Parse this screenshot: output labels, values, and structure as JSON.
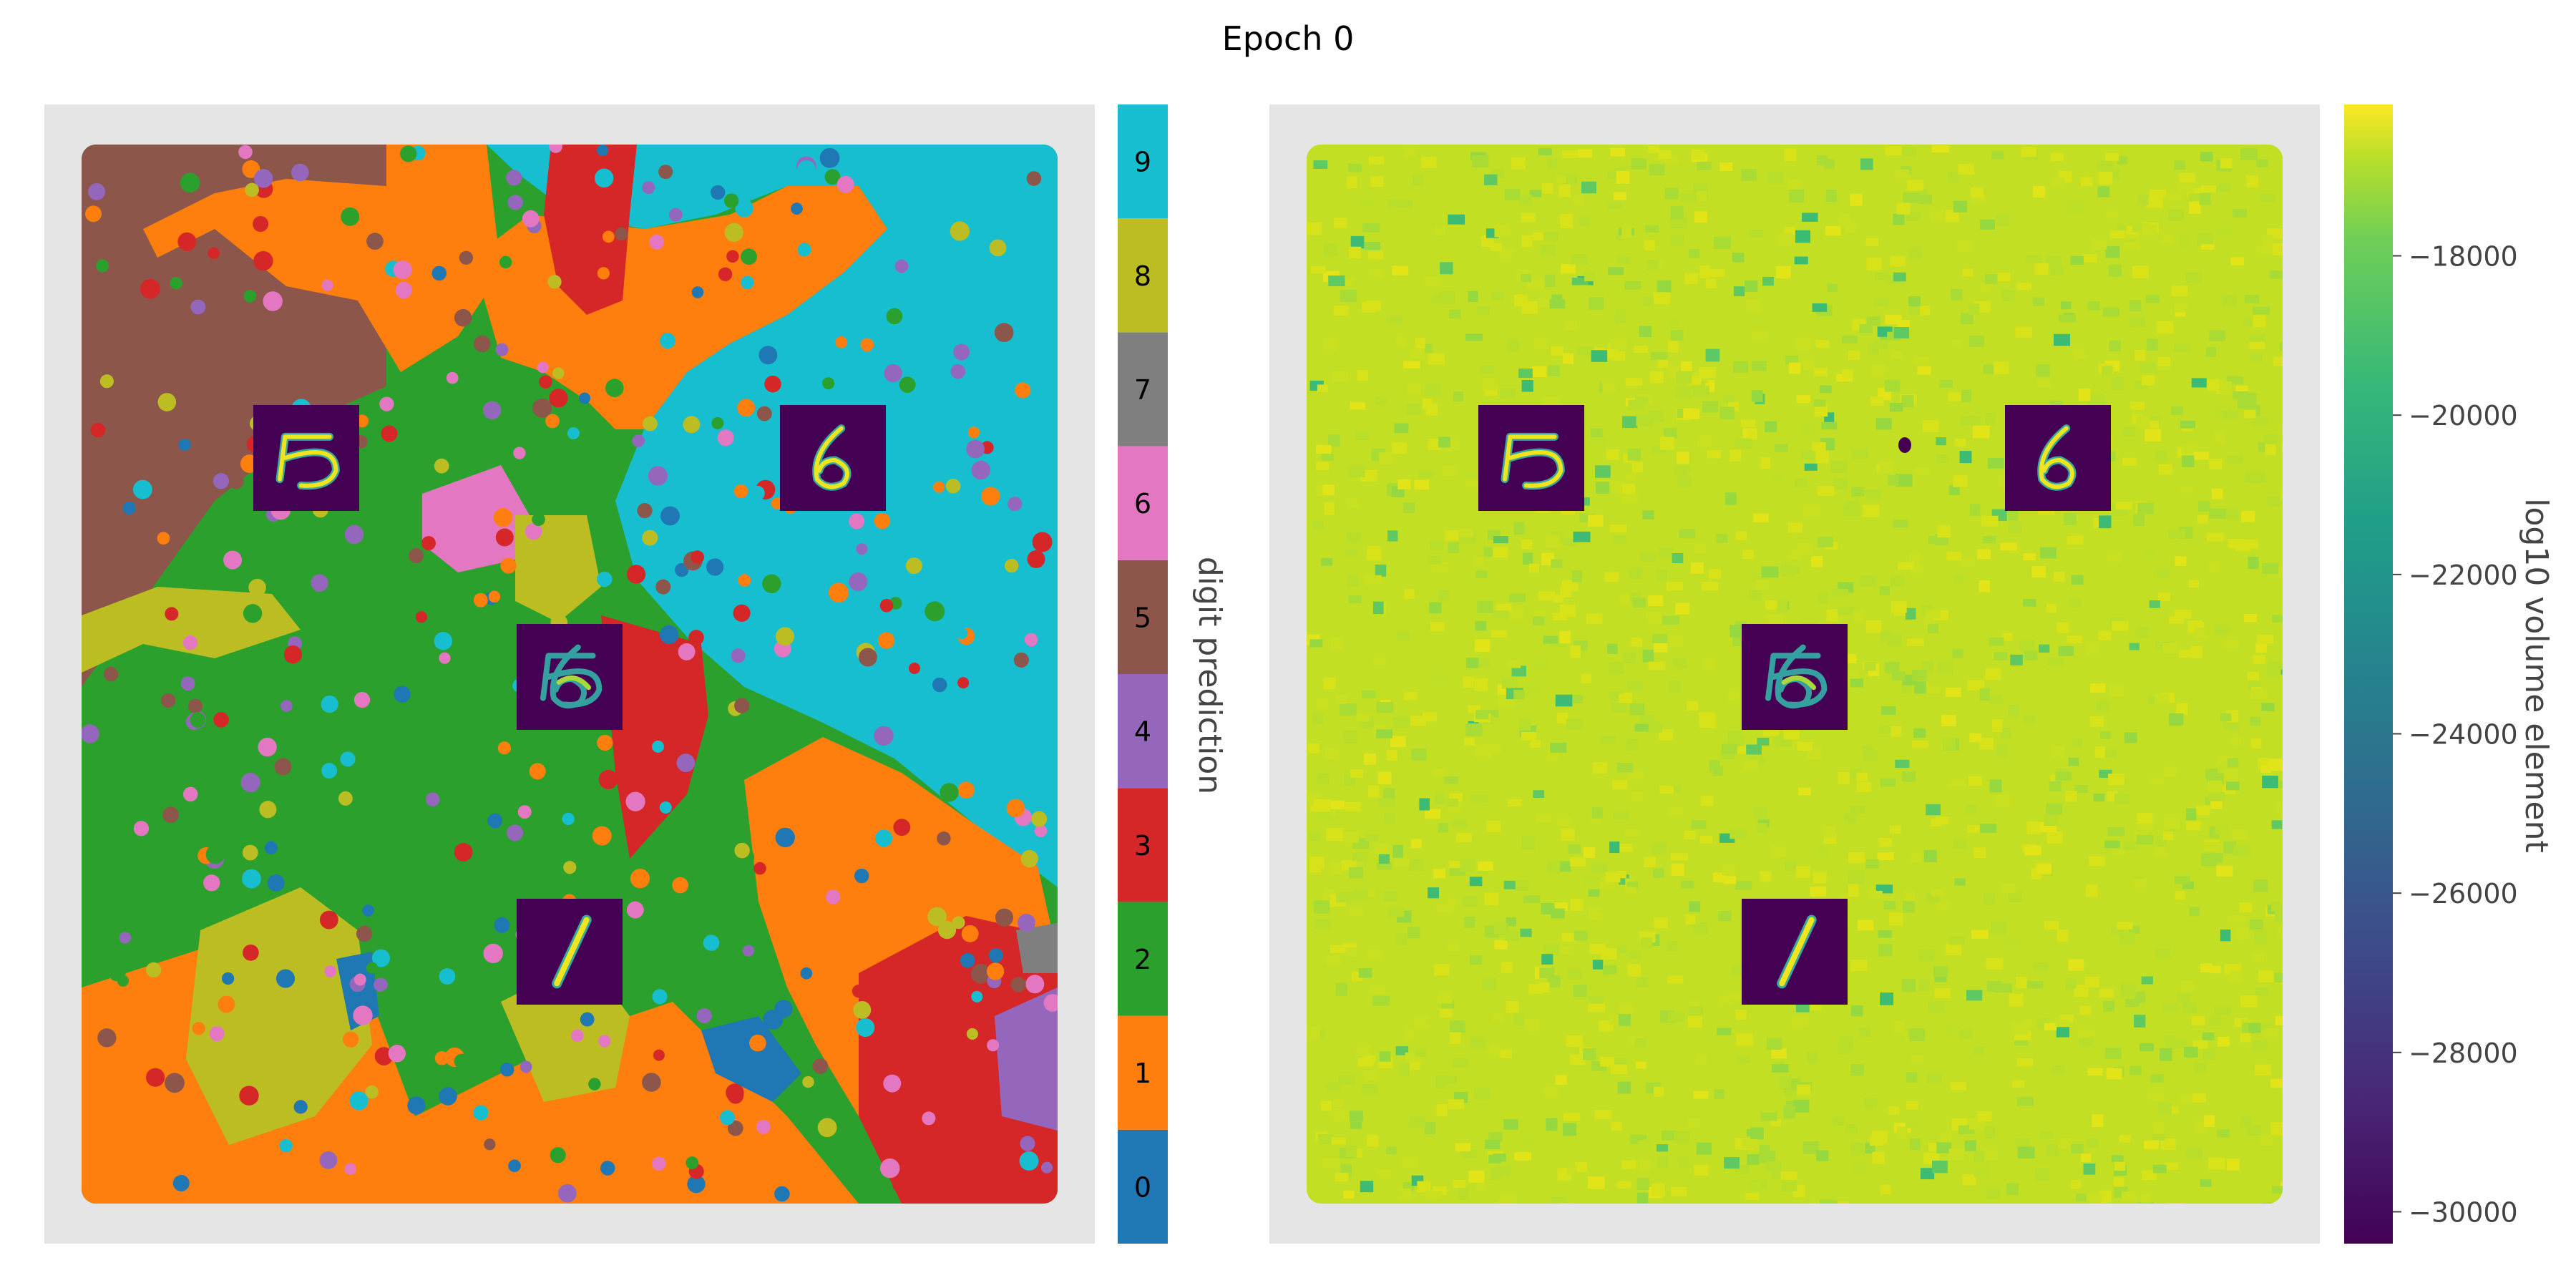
{
  "figure": {
    "title": "Epoch 0"
  },
  "chart_data": [
    {
      "type": "heatmap",
      "subtype": "categorical-latent-map",
      "panel": "left",
      "grid": false,
      "background": "#e5e5e5",
      "inset_images": [
        "digit 5",
        "digit 6",
        "overlapping digits 5 and 6",
        "digit 1"
      ],
      "colorbar": {
        "label": "digit prediction",
        "categories": [
          "0",
          "1",
          "2",
          "3",
          "4",
          "5",
          "6",
          "7",
          "8",
          "9"
        ],
        "colors": [
          "#1f77b4",
          "#ff7f0e",
          "#2ca02c",
          "#d62728",
          "#9467bd",
          "#8c564b",
          "#e377c2",
          "#7f7f7f",
          "#bcbd22",
          "#17becf"
        ]
      }
    },
    {
      "type": "heatmap",
      "subtype": "continuous-latent-map",
      "panel": "right",
      "grid": false,
      "background": "#e5e5e5",
      "inset_images": [
        "digit 5",
        "digit 6",
        "overlapping digits 5 and 6",
        "digit 1"
      ],
      "colorbar": {
        "label": "log10 volume element",
        "colormap": "viridis",
        "range": [
          -30400,
          -16100
        ],
        "ticks": [
          -18000,
          -20000,
          -22000,
          -24000,
          -26000,
          -28000,
          -30000
        ],
        "tick_labels": [
          "−18000",
          "−20000",
          "−22000",
          "−24000",
          "−26000",
          "−28000",
          "−30000"
        ]
      }
    }
  ]
}
